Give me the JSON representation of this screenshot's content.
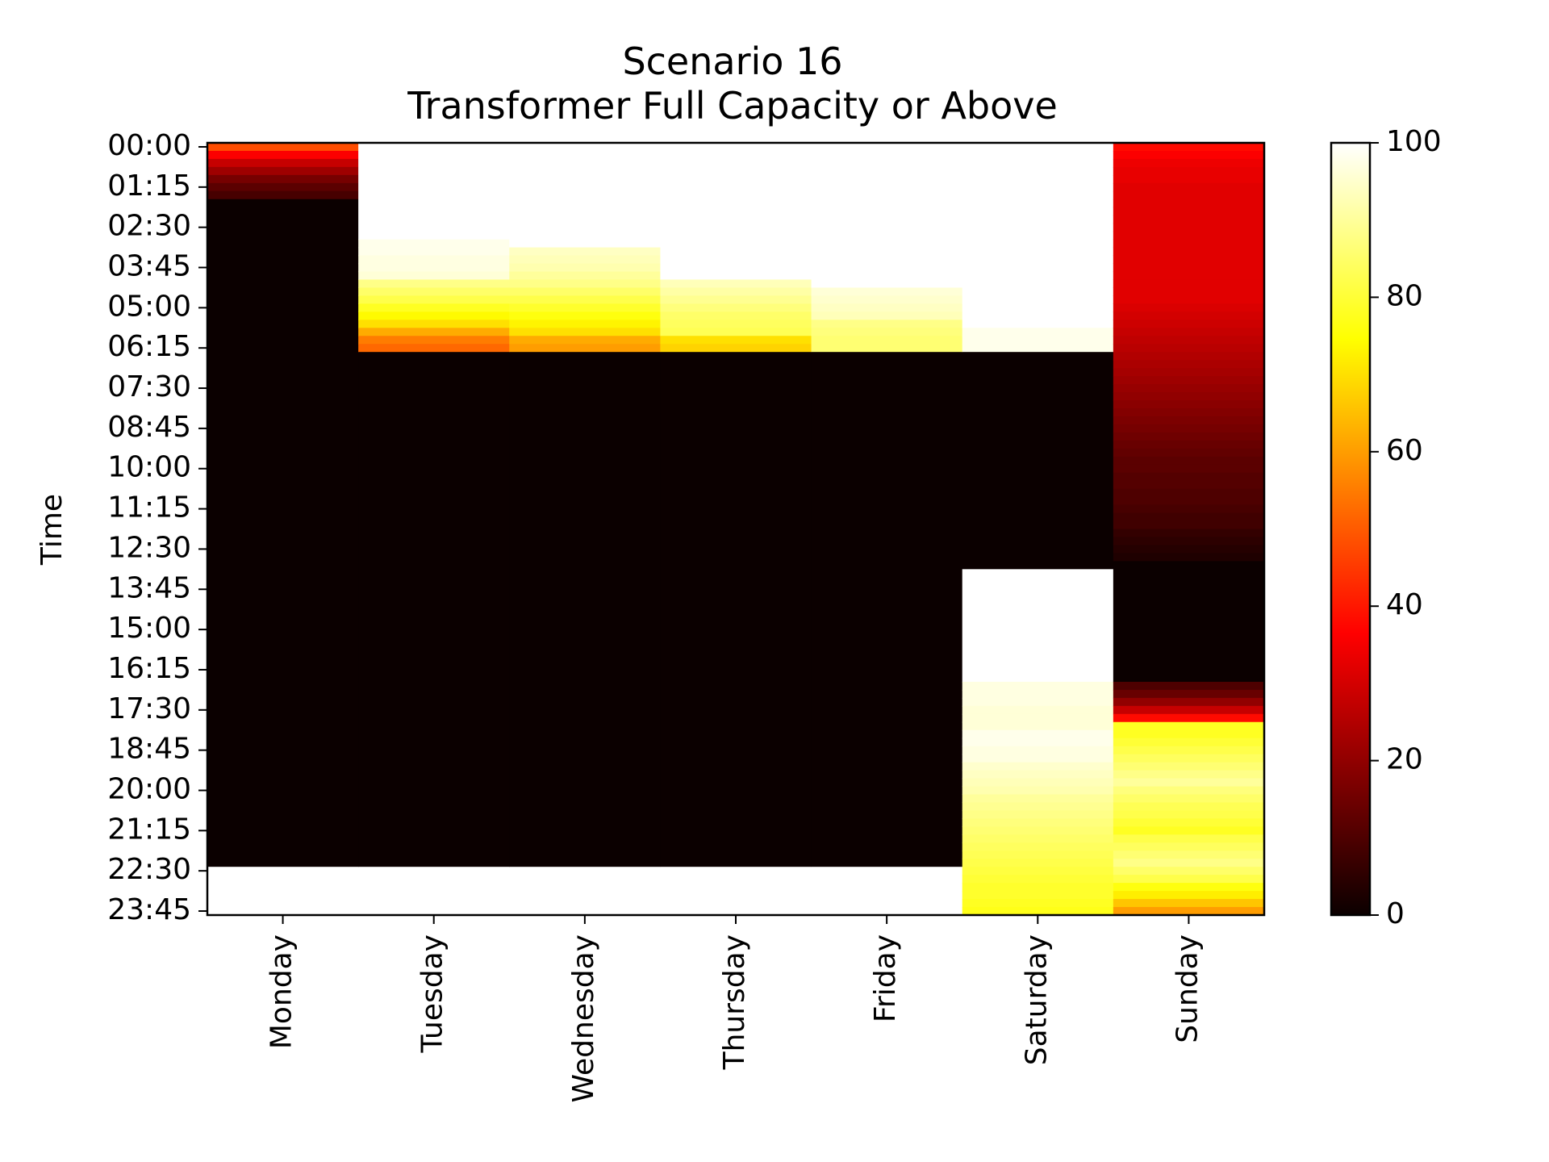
{
  "chart_data": {
    "type": "heatmap",
    "title": "Scenario 16",
    "subtitle": "Transformer Full Capacity or Above",
    "xlabel": "",
    "ylabel": "Time",
    "colormap": "hot",
    "x_categories": [
      "Monday",
      "Tuesday",
      "Wednesday",
      "Thursday",
      "Friday",
      "Saturday",
      "Sunday"
    ],
    "y_tick_labels": [
      "00:00",
      "01:15",
      "02:30",
      "03:45",
      "05:00",
      "06:15",
      "07:30",
      "08:45",
      "10:00",
      "11:15",
      "12:30",
      "13:45",
      "15:00",
      "16:15",
      "17:30",
      "18:45",
      "20:00",
      "21:15",
      "22:30",
      "23:45"
    ],
    "y_tick_step_intervals": 5,
    "interval_minutes": 15,
    "rows_per_day": 96,
    "value_range": [
      0,
      100
    ],
    "colorbar_ticks": [
      0,
      20,
      40,
      60,
      80,
      100
    ],
    "series": [
      {
        "name": "Monday",
        "segments": [
          {
            "from": "00:00",
            "to": "00:15",
            "values": [
              48
            ]
          },
          {
            "from": "00:15",
            "to": "01:45",
            "values": [
              36,
              28,
              22,
              16,
              12,
              9
            ]
          },
          {
            "from": "01:45",
            "to": "22:30",
            "value": 0
          },
          {
            "from": "22:30",
            "to": "24:00",
            "value": 100
          }
        ]
      },
      {
        "name": "Tuesday",
        "segments": [
          {
            "from": "00:00",
            "to": "03:00",
            "value": 100
          },
          {
            "from": "03:00",
            "to": "04:15",
            "values": [
              98,
              98,
              97,
              97,
              96
            ]
          },
          {
            "from": "04:15",
            "to": "06:00",
            "values": [
              88,
              85,
              82,
              78,
              74,
              70,
              62
            ]
          },
          {
            "from": "06:00",
            "to": "06:30",
            "values": [
              55,
              52
            ]
          },
          {
            "from": "06:30",
            "to": "22:30",
            "value": 0
          },
          {
            "from": "22:30",
            "to": "24:00",
            "value": 100
          }
        ]
      },
      {
        "name": "Wednesday",
        "segments": [
          {
            "from": "00:00",
            "to": "03:15",
            "value": 100
          },
          {
            "from": "03:15",
            "to": "04:30",
            "values": [
              94,
              93,
              92,
              90,
              88
            ]
          },
          {
            "from": "04:30",
            "to": "06:00",
            "values": [
              85,
              82,
              79,
              76,
              73,
              70
            ]
          },
          {
            "from": "06:00",
            "to": "06:30",
            "values": [
              62,
              60
            ]
          },
          {
            "from": "06:30",
            "to": "22:30",
            "value": 0
          },
          {
            "from": "22:30",
            "to": "24:00",
            "value": 100
          }
        ]
      },
      {
        "name": "Thursday",
        "segments": [
          {
            "from": "00:00",
            "to": "04:15",
            "value": 100
          },
          {
            "from": "04:15",
            "to": "06:00",
            "values": [
              93,
              91,
              89,
              87,
              85,
              84,
              83
            ]
          },
          {
            "from": "06:00",
            "to": "06:30",
            "values": [
              70,
              68
            ]
          },
          {
            "from": "06:30",
            "to": "22:30",
            "value": 0
          },
          {
            "from": "22:30",
            "to": "24:00",
            "value": 100
          }
        ]
      },
      {
        "name": "Friday",
        "segments": [
          {
            "from": "00:00",
            "to": "04:30",
            "value": 100
          },
          {
            "from": "04:30",
            "to": "05:30",
            "values": [
              96,
              95,
              94,
              93
            ]
          },
          {
            "from": "05:30",
            "to": "06:30",
            "values": [
              88,
              87,
              86,
              86
            ]
          },
          {
            "from": "06:30",
            "to": "22:30",
            "value": 0
          },
          {
            "from": "22:30",
            "to": "24:00",
            "value": 100
          }
        ]
      },
      {
        "name": "Saturday",
        "segments": [
          {
            "from": "00:00",
            "to": "05:45",
            "value": 100
          },
          {
            "from": "05:45",
            "to": "06:30",
            "values": [
              98,
              98,
              98
            ]
          },
          {
            "from": "06:30",
            "to": "13:15",
            "value": 0
          },
          {
            "from": "13:15",
            "to": "16:45",
            "value": 100
          },
          {
            "from": "16:45",
            "to": "18:15",
            "values": [
              97,
              97,
              97,
              96,
              96,
              96
            ]
          },
          {
            "from": "18:15",
            "to": "19:15",
            "values": [
              98,
              98,
              97,
              97
            ]
          },
          {
            "from": "19:15",
            "to": "20:15",
            "values": [
              95,
              94,
              93,
              92
            ]
          },
          {
            "from": "20:15",
            "to": "21:30",
            "values": [
              90,
              89,
              88,
              87,
              86
            ]
          },
          {
            "from": "21:30",
            "to": "22:30",
            "values": [
              85,
              84,
              83,
              82
            ]
          },
          {
            "from": "22:30",
            "to": "23:30",
            "values": [
              81,
              80,
              79,
              79
            ]
          },
          {
            "from": "23:30",
            "to": "24:00",
            "values": [
              78,
              77
            ]
          }
        ]
      },
      {
        "name": "Sunday",
        "segments": [
          {
            "from": "00:00",
            "to": "00:30",
            "values": [
              38,
              36
            ]
          },
          {
            "from": "00:30",
            "to": "05:15",
            "values": [
              34,
              33,
              33,
              32,
              32,
              32,
              32,
              32,
              32,
              32,
              32,
              32,
              32,
              32,
              32,
              32,
              32,
              32,
              31
            ]
          },
          {
            "from": "05:15",
            "to": "07:30",
            "values": [
              30,
              29,
              28,
              27,
              26,
              25,
              24,
              23,
              22
            ]
          },
          {
            "from": "07:30",
            "to": "09:15",
            "values": [
              21,
              20,
              19,
              18,
              17,
              16,
              15
            ]
          },
          {
            "from": "09:15",
            "to": "12:00",
            "values": [
              14,
              13,
              12,
              12,
              11,
              11,
              10,
              10,
              9,
              8,
              8
            ]
          },
          {
            "from": "12:00",
            "to": "13:00",
            "values": [
              6,
              5,
              4,
              3
            ]
          },
          {
            "from": "13:00",
            "to": "16:45",
            "value": 0
          },
          {
            "from": "16:45",
            "to": "17:45",
            "values": [
              10,
              14,
              20,
              28
            ]
          },
          {
            "from": "17:45",
            "to": "18:00",
            "values": [
              38
            ]
          },
          {
            "from": "18:00",
            "to": "19:00",
            "values": [
              78,
              78,
              80,
              82
            ]
          },
          {
            "from": "19:00",
            "to": "20:00",
            "values": [
              84,
              86,
              88,
              90
            ]
          },
          {
            "from": "20:00",
            "to": "21:00",
            "values": [
              87,
              85,
              83,
              82
            ]
          },
          {
            "from": "21:00",
            "to": "21:30",
            "values": [
              80,
              78
            ]
          },
          {
            "from": "21:30",
            "to": "22:30",
            "values": [
              82,
              84,
              86,
              88
            ]
          },
          {
            "from": "22:30",
            "to": "23:00",
            "values": [
              85,
              82
            ]
          },
          {
            "from": "23:00",
            "to": "23:30",
            "values": [
              76,
              72
            ]
          },
          {
            "from": "23:30",
            "to": "24:00",
            "values": [
              66,
              60
            ]
          }
        ]
      }
    ]
  }
}
